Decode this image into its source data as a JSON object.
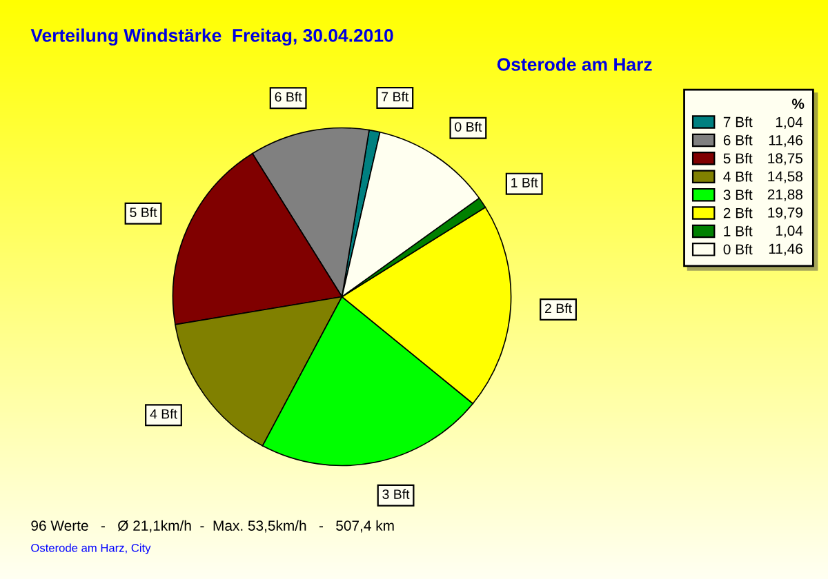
{
  "chart_data": {
    "type": "pie",
    "title": "Verteilung Windstärke  Freitag, 30.04.2010",
    "subtitle": "Osterode am Harz",
    "legend_title": "%",
    "categories": [
      "7 Bft",
      "6 Bft",
      "5 Bft",
      "4 Bft",
      "3 Bft",
      "2 Bft",
      "1 Bft",
      "0 Bft"
    ],
    "values": [
      1.04,
      11.46,
      18.75,
      14.58,
      21.88,
      19.79,
      1.04,
      11.46
    ],
    "value_labels": [
      "1,04",
      "11,46",
      "18,75",
      "14,58",
      "21,88",
      "19,79",
      "1,04",
      "11,46"
    ],
    "colors": [
      "#008080",
      "#808080",
      "#800000",
      "#808000",
      "#00ff00",
      "#ffff00",
      "#008000",
      "#fffff0"
    ],
    "legend": "top right",
    "annotations": [
      "96 Werte   -   Ø 21,1km/h  -  Max. 53,5km/h   -   507,4 km",
      "Osterode am Harz, City"
    ]
  }
}
